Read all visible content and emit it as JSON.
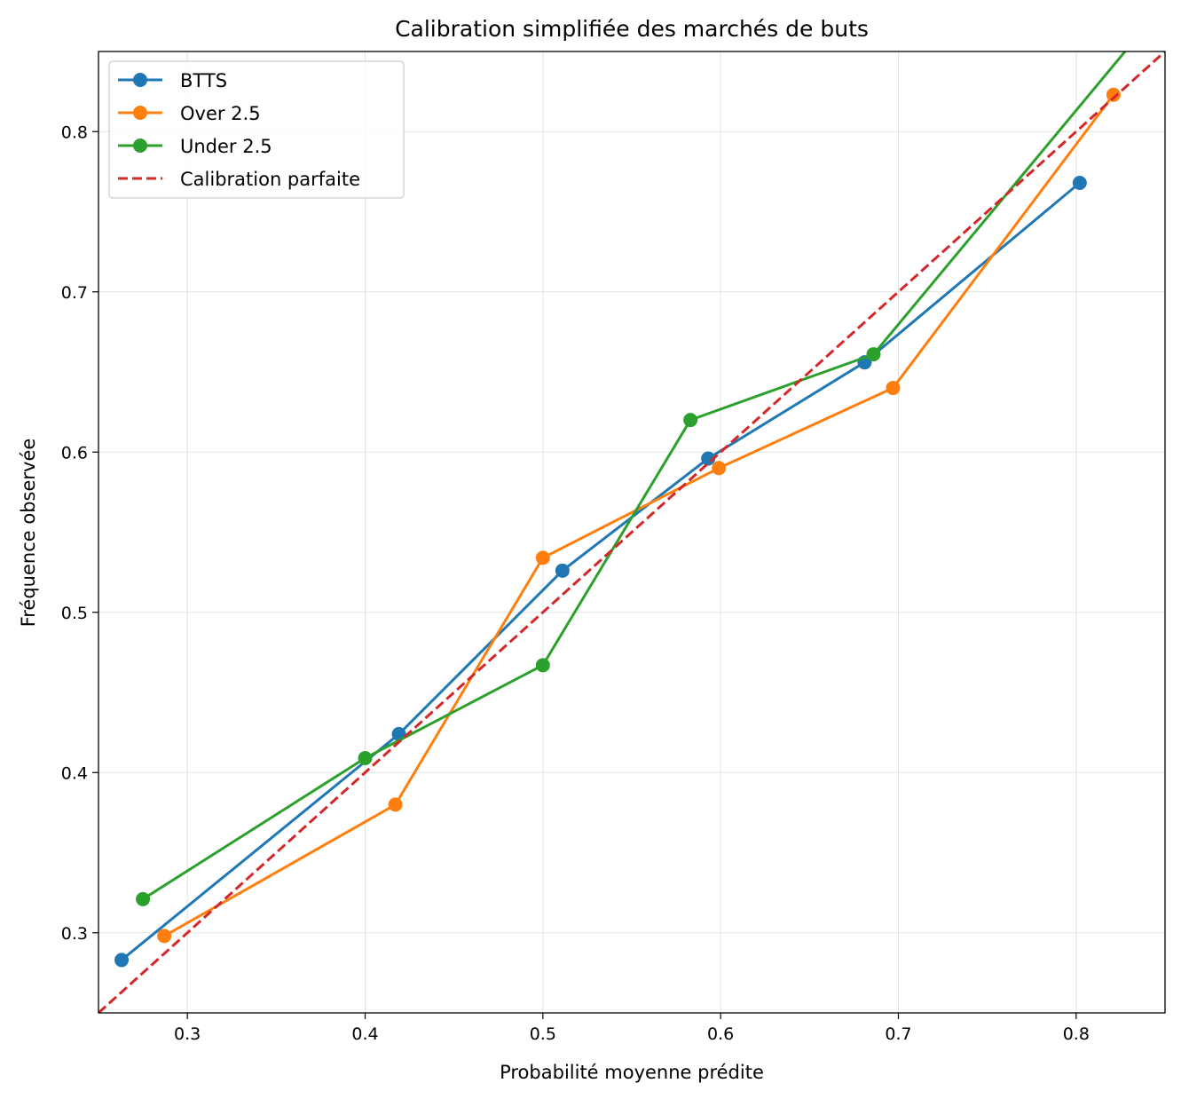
{
  "chart_data": {
    "type": "line",
    "title": "Calibration simplifiée des marchés de buts",
    "xlabel": "Probabilité moyenne prédite",
    "ylabel": "Fréquence observée",
    "xlim": [
      0.25,
      0.85
    ],
    "ylim": [
      0.25,
      0.85
    ],
    "xticks": [
      "0.3",
      "0.4",
      "0.5",
      "0.6",
      "0.7",
      "0.8"
    ],
    "yticks": [
      "0.3",
      "0.4",
      "0.5",
      "0.6",
      "0.7",
      "0.8"
    ],
    "grid": true,
    "legend_position": "top-left",
    "series": [
      {
        "name": "BTTS",
        "color": "#1f77b4",
        "style": "solid-markers",
        "x": [
          0.263,
          0.419,
          0.511,
          0.593,
          0.681,
          0.802
        ],
        "y": [
          0.283,
          0.424,
          0.526,
          0.596,
          0.656,
          0.768
        ]
      },
      {
        "name": "Over 2.5",
        "color": "#ff7f0e",
        "style": "solid-markers",
        "x": [
          0.287,
          0.417,
          0.5,
          0.599,
          0.697,
          0.821
        ],
        "y": [
          0.298,
          0.38,
          0.534,
          0.59,
          0.64,
          0.823
        ]
      },
      {
        "name": "Under 2.5",
        "color": "#2ca02c",
        "style": "solid-markers",
        "x": [
          0.275,
          0.4,
          0.5,
          0.583,
          0.686,
          0.85
        ],
        "y": [
          0.321,
          0.409,
          0.467,
          0.62,
          0.661,
          0.88
        ]
      },
      {
        "name": "Calibration parfaite",
        "color": "#d62728",
        "style": "dashed",
        "x": [
          0.25,
          0.85
        ],
        "y": [
          0.25,
          0.85
        ]
      }
    ]
  }
}
